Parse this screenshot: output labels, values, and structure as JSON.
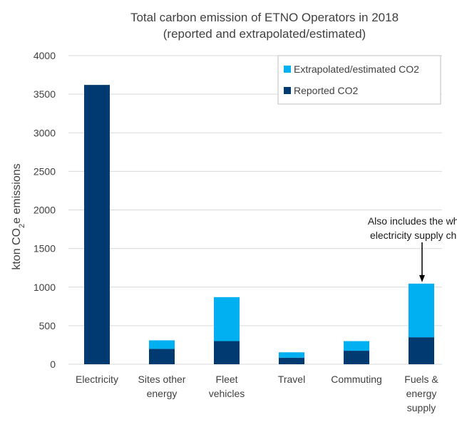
{
  "chart_data": {
    "type": "bar",
    "stacked": true,
    "title_lines": [
      "Total carbon emission of ETNO Operators in 2018",
      "(reported and extrapolated/estimated)"
    ],
    "ylabel_parts": {
      "pre": "kton CO",
      "sub": "2",
      "post": "e emissions"
    },
    "ylim": [
      0,
      4000
    ],
    "yticks": [
      "0",
      "500",
      "1000",
      "1500",
      "2000",
      "2500",
      "3000",
      "3500",
      "4000"
    ],
    "categories": [
      [
        "Electricity"
      ],
      [
        "Sites other",
        "energy"
      ],
      [
        "Fleet",
        "vehicles"
      ],
      [
        "Travel"
      ],
      [
        "Commuting"
      ],
      [
        "Fuels &",
        "energy",
        "supply"
      ]
    ],
    "series": [
      {
        "name": "Reported CO2",
        "color": "#003a70",
        "values": [
          3620,
          200,
          300,
          85,
          175,
          350
        ]
      },
      {
        "name": "Extrapolated/estimated CO2",
        "color": "#00b0f0",
        "values": [
          0,
          110,
          570,
          70,
          125,
          695
        ]
      }
    ],
    "legend": {
      "position": "top-right",
      "entries": [
        "Extrapolated/estimated CO2",
        "Reported CO2"
      ],
      "colors": [
        "#00b0f0",
        "#003a70"
      ]
    },
    "annotation": {
      "lines": [
        "Also includes the whole",
        "electricity supply chain"
      ],
      "target_category": 5
    }
  }
}
